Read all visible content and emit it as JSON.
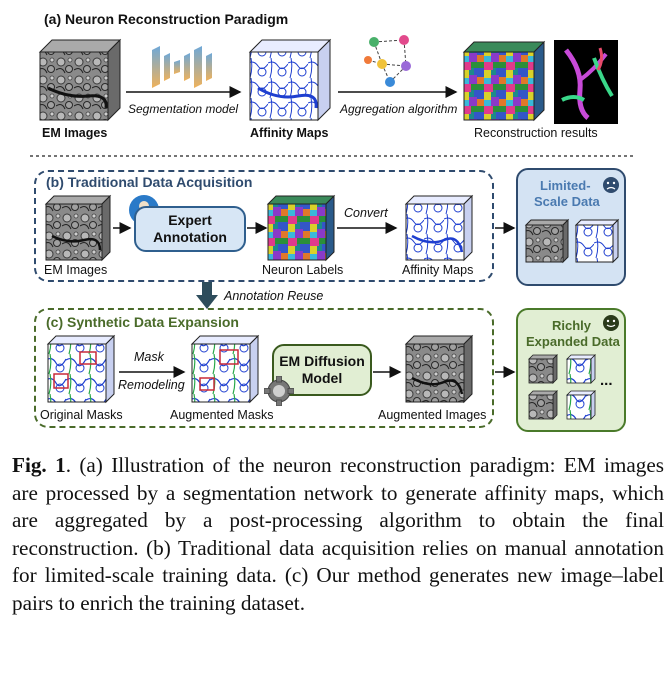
{
  "section_a": {
    "title": "(a) Neuron Reconstruction Paradigm",
    "em_images": "EM Images",
    "segmentation_model": "Segmentation model",
    "affinity_maps": "Affinity Maps",
    "aggregation_algorithm": "Aggregation algorithm",
    "reconstruction_results": "Reconstruction results"
  },
  "section_b": {
    "title": "(b) Traditional Data Acquisition",
    "em_images": "EM Images",
    "expert_line1": "Expert",
    "expert_line2": "Annotation",
    "convert": "Convert",
    "neuron_labels": "Neuron Labels",
    "affinity_maps": "Affinity Maps",
    "limited_line1": "Limited-",
    "limited_line2": "Scale Data"
  },
  "annotation_reuse": "Annotation Reuse",
  "section_c": {
    "title": "(c) Synthetic Data Expansion",
    "original_masks": "Original Masks",
    "mask": "Mask",
    "remodeling": "Remodeling",
    "augmented_masks": "Augmented Masks",
    "diffusion_line1": "EM Diffusion",
    "diffusion_line2": "Model",
    "augmented_images": "Augmented Images",
    "richly_line1": "Richly",
    "richly_line2": "Expanded Data",
    "ellipsis": "..."
  },
  "caption": {
    "fig_label": "Fig. 1",
    "text": ". (a) Illustration of the neuron reconstruction paradigm: EM images are processed by a segmentation network to generate affinity maps, which are aggregated by a post-processing algorithm to obtain the final reconstruction. (b) Traditional data acquisition relies on manual annotation for limited-scale training data. (c) Our method generates new image–label pairs to enrich the training dataset."
  },
  "colors": {
    "section_b_border": "#2f4b6e",
    "section_c_border": "#4a6b2a",
    "expert_fill": "#d7e6f5",
    "limited_fill": "#d4e3f3",
    "diffusion_fill": "#e1eed3",
    "richly_fill": "#e1eed3",
    "reuse_arrow": "#2e4d5c"
  }
}
